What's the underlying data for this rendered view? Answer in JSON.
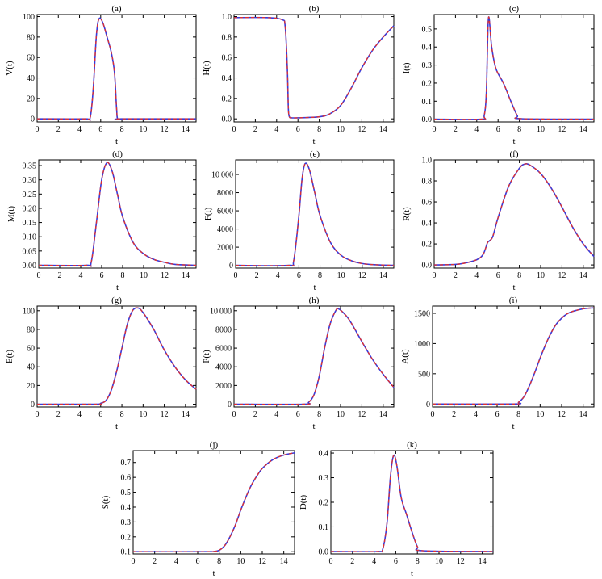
{
  "colors": {
    "series_a": "#3a3ad8",
    "series_b": "#e03030",
    "frame": "#000000"
  },
  "chart_data": [
    {
      "type": "line",
      "title": "(a)",
      "xlabel": "t",
      "ylabel": "V(t)",
      "xlim": [
        0,
        15
      ],
      "ylim": [
        -3,
        102
      ],
      "xticks": [
        0,
        2,
        4,
        6,
        8,
        10,
        12,
        14
      ],
      "yticks": [
        0,
        20,
        40,
        60,
        80,
        100
      ],
      "x": [
        0,
        4.5,
        5.0,
        5.3,
        5.6,
        5.85,
        6.2,
        6.6,
        7.0,
        7.3,
        7.5,
        7.6,
        8,
        15
      ],
      "series": [
        {
          "style": "solid",
          "y": [
            0,
            0,
            1,
            30,
            82,
            98,
            94,
            80,
            65,
            45,
            10,
            0,
            0,
            0
          ]
        },
        {
          "style": "dashed",
          "y": [
            0,
            0,
            1,
            30,
            82,
            98,
            94,
            80,
            65,
            45,
            10,
            0,
            0,
            0
          ]
        }
      ]
    },
    {
      "type": "line",
      "title": "(b)",
      "xlabel": "t",
      "ylabel": "H(t)",
      "xlim": [
        0,
        15
      ],
      "ylim": [
        -0.03,
        1.02
      ],
      "xticks": [
        0,
        2,
        4,
        6,
        8,
        10,
        12,
        14
      ],
      "yticks": [
        "0.0",
        "0.2",
        "0.4",
        "0.6",
        "0.8",
        "1.0"
      ],
      "x": [
        0,
        3,
        4.5,
        4.8,
        5.0,
        5.1,
        5.2,
        5.4,
        6,
        8,
        9,
        10,
        11,
        12,
        13,
        14,
        15
      ],
      "series": [
        {
          "style": "solid",
          "y": [
            0.99,
            0.99,
            0.97,
            0.9,
            0.5,
            0.1,
            0.02,
            0.01,
            0.01,
            0.02,
            0.05,
            0.13,
            0.3,
            0.5,
            0.67,
            0.8,
            0.91
          ]
        },
        {
          "style": "dashed",
          "y": [
            0.99,
            0.99,
            0.97,
            0.9,
            0.5,
            0.1,
            0.02,
            0.01,
            0.01,
            0.02,
            0.05,
            0.13,
            0.3,
            0.5,
            0.67,
            0.8,
            0.91
          ]
        }
      ]
    },
    {
      "type": "line",
      "title": "(c)",
      "xlabel": "t",
      "ylabel": "I(t)",
      "xlim": [
        0,
        15
      ],
      "ylim": [
        -0.015,
        0.58
      ],
      "xticks": [
        0,
        2,
        4,
        6,
        8,
        10,
        12,
        14
      ],
      "yticks": [
        "0.0",
        "0.1",
        "0.2",
        "0.3",
        "0.4",
        "0.5"
      ],
      "x": [
        0,
        4.4,
        4.7,
        4.9,
        5.1,
        5.4,
        5.8,
        6.5,
        7.2,
        7.8,
        8.2,
        15
      ],
      "series": [
        {
          "style": "solid",
          "y": [
            0,
            0,
            0.02,
            0.15,
            0.56,
            0.4,
            0.28,
            0.2,
            0.1,
            0.02,
            0.003,
            0
          ]
        },
        {
          "style": "dashed",
          "y": [
            0,
            0,
            0.02,
            0.15,
            0.56,
            0.4,
            0.28,
            0.2,
            0.1,
            0.02,
            0.003,
            0
          ]
        }
      ]
    },
    {
      "type": "line",
      "title": "(d)",
      "xlabel": "t",
      "ylabel": "M(t)",
      "xlim": [
        0,
        15
      ],
      "ylim": [
        -0.01,
        0.37
      ],
      "xticks": [
        0,
        2,
        4,
        6,
        8,
        10,
        12,
        14
      ],
      "yticks": [
        "0.00",
        "0.05",
        "0.10",
        "0.15",
        "0.20",
        "0.25",
        "0.30",
        "0.35"
      ],
      "x": [
        0,
        4.5,
        5.0,
        5.5,
        6.0,
        6.5,
        7.0,
        7.5,
        8.0,
        9.0,
        10.0,
        11.0,
        12.0,
        13.0,
        15.0
      ],
      "series": [
        {
          "style": "solid",
          "y": [
            0,
            0,
            0.01,
            0.15,
            0.3,
            0.36,
            0.33,
            0.25,
            0.17,
            0.08,
            0.04,
            0.02,
            0.01,
            0.003,
            0
          ]
        },
        {
          "style": "dashed",
          "y": [
            0,
            0,
            0.01,
            0.15,
            0.3,
            0.36,
            0.33,
            0.25,
            0.17,
            0.08,
            0.04,
            0.02,
            0.01,
            0.003,
            0
          ]
        }
      ]
    },
    {
      "type": "line",
      "title": "(e)",
      "xlabel": "t",
      "ylabel": "F(t)",
      "xlim": [
        0,
        15
      ],
      "ylim": [
        -300,
        11600
      ],
      "xticks": [
        0,
        2,
        4,
        6,
        8,
        10,
        12,
        14
      ],
      "yticks": [
        "0",
        "2000",
        "4000",
        "6000",
        "8000",
        "10 000"
      ],
      "x": [
        0,
        5.0,
        5.5,
        6.0,
        6.3,
        6.6,
        7.0,
        7.5,
        8.0,
        9.0,
        10.0,
        11.0,
        12.0,
        13.0,
        15.0
      ],
      "series": [
        {
          "style": "solid",
          "y": [
            0,
            0,
            500,
            5500,
            9500,
            11200,
            10500,
            8000,
            5500,
            2500,
            1100,
            500,
            200,
            80,
            0
          ]
        },
        {
          "style": "dashed",
          "y": [
            0,
            0,
            500,
            5500,
            9500,
            11200,
            10500,
            8000,
            5500,
            2500,
            1100,
            500,
            200,
            80,
            0
          ]
        }
      ]
    },
    {
      "type": "line",
      "title": "(f)",
      "xlabel": "t",
      "ylabel": "R(t)",
      "xlim": [
        0,
        15
      ],
      "ylim": [
        -0.03,
        1.0
      ],
      "xticks": [
        0,
        2,
        4,
        6,
        8,
        10,
        12,
        14
      ],
      "yticks": [
        "0.0",
        "0.2",
        "0.4",
        "0.6",
        "0.8",
        "1.0"
      ],
      "x": [
        0,
        2,
        3,
        4,
        4.6,
        5.0,
        5.2,
        5.5,
        6.0,
        7.0,
        8.0,
        8.5,
        9.0,
        10.0,
        11.0,
        12.0,
        13.0,
        14.0,
        15.0
      ],
      "series": [
        {
          "style": "solid",
          "y": [
            0,
            0.005,
            0.02,
            0.05,
            0.1,
            0.21,
            0.23,
            0.27,
            0.45,
            0.75,
            0.92,
            0.96,
            0.95,
            0.87,
            0.73,
            0.55,
            0.36,
            0.2,
            0.08
          ]
        },
        {
          "style": "dashed",
          "y": [
            0,
            0.005,
            0.02,
            0.05,
            0.1,
            0.21,
            0.23,
            0.27,
            0.45,
            0.75,
            0.92,
            0.96,
            0.95,
            0.87,
            0.73,
            0.55,
            0.36,
            0.2,
            0.08
          ]
        }
      ]
    },
    {
      "type": "line",
      "title": "(g)",
      "xlabel": "t",
      "ylabel": "E(t)",
      "xlim": [
        0,
        15
      ],
      "ylim": [
        -3,
        105
      ],
      "xticks": [
        0,
        2,
        4,
        6,
        8,
        10,
        12,
        14
      ],
      "yticks": [
        0,
        20,
        40,
        60,
        80,
        100
      ],
      "x": [
        0,
        5.5,
        6.0,
        6.5,
        7.0,
        7.5,
        8.0,
        8.5,
        9.0,
        9.5,
        10.0,
        11.0,
        12.0,
        13.0,
        14.0,
        15.0
      ],
      "series": [
        {
          "style": "solid",
          "y": [
            0,
            0,
            1,
            4,
            15,
            35,
            60,
            85,
            100,
            103,
            98,
            80,
            58,
            40,
            26,
            16
          ]
        },
        {
          "style": "dashed",
          "y": [
            0,
            0,
            1,
            4,
            15,
            35,
            60,
            85,
            100,
            103,
            98,
            80,
            58,
            40,
            26,
            16
          ]
        }
      ]
    },
    {
      "type": "line",
      "title": "(h)",
      "xlabel": "t",
      "ylabel": "P(t)",
      "xlim": [
        0,
        15
      ],
      "ylim": [
        -300,
        10500
      ],
      "xticks": [
        0,
        2,
        4,
        6,
        8,
        10,
        12,
        14
      ],
      "yticks": [
        "0",
        "2000",
        "4000",
        "6000",
        "8000",
        "10 000"
      ],
      "x": [
        0,
        6.5,
        7.0,
        7.5,
        8.0,
        8.5,
        9.0,
        9.5,
        9.8,
        10.5,
        11.0,
        12.0,
        13.0,
        14.0,
        15.0
      ],
      "series": [
        {
          "style": "solid",
          "y": [
            0,
            0,
            200,
            1000,
            3000,
            6000,
            8500,
            9900,
            10200,
            9500,
            8700,
            6700,
            4800,
            3200,
            1800
          ]
        },
        {
          "style": "dashed",
          "y": [
            0,
            0,
            200,
            1000,
            3000,
            6000,
            8500,
            9900,
            10200,
            9500,
            8700,
            6700,
            4800,
            3200,
            1800
          ]
        }
      ]
    },
    {
      "type": "line",
      "title": "(i)",
      "xlabel": "t",
      "ylabel": "A(t)",
      "xlim": [
        0,
        15
      ],
      "ylim": [
        -50,
        1620
      ],
      "xticks": [
        0,
        2,
        4,
        6,
        8,
        10,
        12,
        14
      ],
      "yticks": [
        0,
        500,
        1000,
        1500
      ],
      "x": [
        0,
        7.5,
        8.0,
        8.5,
        9.0,
        9.5,
        10.0,
        10.5,
        11.0,
        11.5,
        12.0,
        12.5,
        13.0,
        14.0,
        15.0
      ],
      "series": [
        {
          "style": "solid",
          "y": [
            0,
            0,
            30,
            120,
            300,
            520,
            760,
            980,
            1170,
            1320,
            1420,
            1490,
            1530,
            1575,
            1590
          ]
        },
        {
          "style": "dashed",
          "y": [
            0,
            0,
            30,
            120,
            300,
            520,
            760,
            980,
            1170,
            1320,
            1420,
            1490,
            1530,
            1575,
            1590
          ]
        }
      ]
    },
    {
      "type": "line",
      "title": "(j)",
      "xlabel": "t",
      "ylabel": "S(t)",
      "xlim": [
        0,
        15
      ],
      "ylim": [
        0.085,
        0.78
      ],
      "xticks": [
        0,
        2,
        4,
        6,
        8,
        10,
        12,
        14
      ],
      "yticks": [
        "0.1",
        "0.2",
        "0.3",
        "0.4",
        "0.5",
        "0.6",
        "0.7"
      ],
      "x": [
        0,
        7.0,
        7.5,
        8.0,
        8.5,
        9.0,
        9.5,
        10.0,
        10.5,
        11.0,
        11.5,
        12.0,
        13.0,
        14.0,
        15.0
      ],
      "series": [
        {
          "style": "solid",
          "y": [
            0.1,
            0.1,
            0.102,
            0.11,
            0.14,
            0.2,
            0.28,
            0.38,
            0.47,
            0.55,
            0.61,
            0.66,
            0.72,
            0.75,
            0.765
          ]
        },
        {
          "style": "dashed",
          "y": [
            0.1,
            0.1,
            0.102,
            0.11,
            0.14,
            0.2,
            0.28,
            0.38,
            0.47,
            0.55,
            0.61,
            0.66,
            0.72,
            0.75,
            0.765
          ]
        }
      ]
    },
    {
      "type": "line",
      "title": "(k)",
      "xlabel": "t",
      "ylabel": "D(t)",
      "xlim": [
        0,
        15
      ],
      "ylim": [
        -0.01,
        0.41
      ],
      "xticks": [
        0,
        2,
        4,
        6,
        8,
        10,
        12,
        14
      ],
      "yticks": [
        "0.0",
        "0.1",
        "0.2",
        "0.3",
        "0.4"
      ],
      "x": [
        0,
        4.3,
        4.8,
        5.2,
        5.5,
        5.8,
        6.1,
        6.5,
        7.0,
        7.5,
        8.0,
        8.5,
        15
      ],
      "series": [
        {
          "style": "solid",
          "y": [
            0,
            0,
            0.01,
            0.12,
            0.3,
            0.39,
            0.35,
            0.22,
            0.15,
            0.08,
            0.02,
            0.003,
            0
          ]
        },
        {
          "style": "dashed",
          "y": [
            0,
            0,
            0.01,
            0.12,
            0.3,
            0.39,
            0.35,
            0.22,
            0.15,
            0.08,
            0.02,
            0.003,
            0
          ]
        }
      ]
    }
  ]
}
